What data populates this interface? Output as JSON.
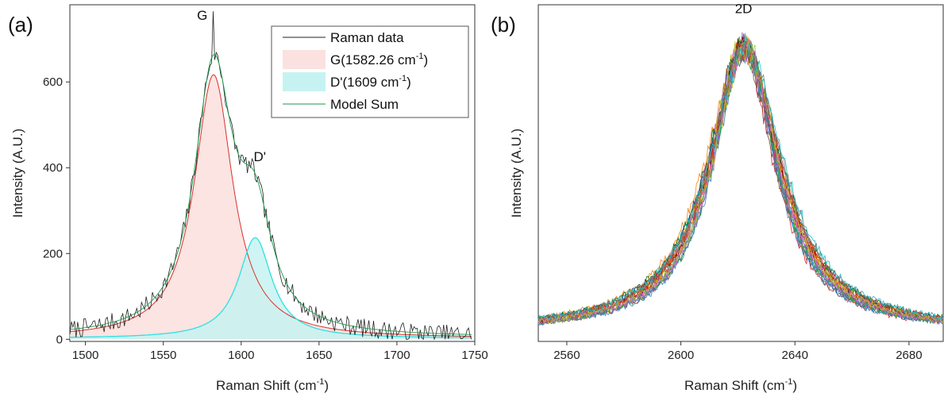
{
  "chart_data": [
    {
      "type": "area",
      "panel_label": "(a)",
      "xlabel": "Raman Shift (cm",
      "xlabel_sup": "-1",
      "xlabel_end": ")",
      "ylabel": "Intensity (A.U.)",
      "xlim": [
        1490,
        1750
      ],
      "ylim": [
        -5,
        780
      ],
      "xticks": [
        1500,
        1550,
        1600,
        1650,
        1700,
        1750
      ],
      "yticks": [
        0,
        200,
        400,
        600
      ],
      "annotations": [
        {
          "text": "G",
          "x": 1575,
          "y": 745
        },
        {
          "text": "D'",
          "x": 1612,
          "y": 415
        }
      ],
      "legend_position": "top-right",
      "colors": {
        "raman": "#222222",
        "g_line": "#d9302a",
        "g_fill": "#fbe1df",
        "d_line": "#2ee0e0",
        "d_fill": "#c6f3f1",
        "model": "#1a9a4a"
      },
      "legend": [
        {
          "label": "Raman data",
          "sup": "",
          "end": "",
          "style": "line"
        },
        {
          "label": "G(1582.26 cm",
          "sup": "-1",
          "end": ")",
          "style": "g_patch"
        },
        {
          "label": "D'(1609 cm",
          "sup": "-1",
          "end": ")",
          "style": "d_patch"
        },
        {
          "label": "Model Sum",
          "sup": "",
          "end": "",
          "style": "model_line"
        }
      ],
      "series": [
        {
          "name": "G(1582.26 cm-1)",
          "model": "lorentzian",
          "center": 1582.26,
          "amplitude": 615,
          "hwhm": 15,
          "baseline": 2
        },
        {
          "name": "D'(1609 cm-1)",
          "model": "lorentzian",
          "center": 1609,
          "amplitude": 235,
          "hwhm": 13,
          "baseline": 2
        },
        {
          "name": "Model Sum",
          "model": "sum"
        },
        {
          "name": "Raman data",
          "model": "noisy_sum",
          "noise": 22,
          "max_point": {
            "x": 1582,
            "y": 765
          }
        }
      ]
    },
    {
      "type": "line",
      "panel_label": "(b)",
      "xlabel": "Raman Shift (cm",
      "xlabel_sup": "-1",
      "xlabel_end": ")",
      "ylabel": "Intensity (A.U.)",
      "xlim": [
        2550,
        2692
      ],
      "ylim": [
        -30,
        1000
      ],
      "xticks": [
        2560,
        2600,
        2640,
        2680
      ],
      "annotations": [
        {
          "text": "2D",
          "x": 2622,
          "y": 975
        }
      ],
      "series_count": 26,
      "peak_center_range": [
        2619,
        2628
      ],
      "peak_height": 900,
      "peak_hwhm_range": [
        13,
        16
      ],
      "noise": 22,
      "palette": [
        "#1f77b4",
        "#ff7f0e",
        "#2ca02c",
        "#d62728",
        "#9467bd",
        "#8c564b",
        "#e377c2",
        "#7f7f7f",
        "#bcbd22",
        "#17becf",
        "#0b3d91",
        "#ff1493",
        "#006400",
        "#b8860b",
        "#4682b4",
        "#800000"
      ]
    }
  ]
}
